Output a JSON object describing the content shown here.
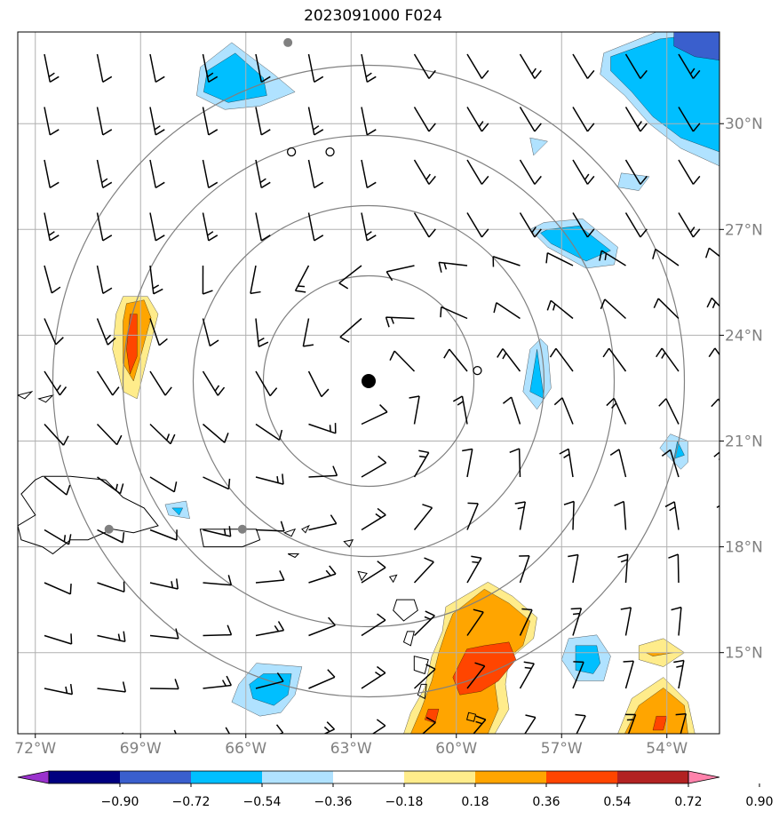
{
  "title": "2023091000 F024",
  "map": {
    "lon_range": [
      -72.5,
      -52.5
    ],
    "lat_range": [
      12.7,
      32.6
    ],
    "center": {
      "lon": -62.5,
      "lat": 22.7
    },
    "range_ring_radii_deg": [
      3,
      5,
      7,
      9
    ],
    "lon_ticks": [
      {
        "value": -72,
        "label": "72°W"
      },
      {
        "value": -69,
        "label": "69°W"
      },
      {
        "value": -66,
        "label": "66°W"
      },
      {
        "value": -63,
        "label": "63°W"
      },
      {
        "value": -60,
        "label": "60°W"
      },
      {
        "value": -57,
        "label": "57°W"
      },
      {
        "value": -54,
        "label": "54°W"
      }
    ],
    "lat_ticks": [
      {
        "value": 30,
        "label": "30°N"
      },
      {
        "value": 27,
        "label": "27°N"
      },
      {
        "value": 24,
        "label": "24°N"
      },
      {
        "value": 21,
        "label": "21°N"
      },
      {
        "value": 18,
        "label": "18°N"
      },
      {
        "value": 15,
        "label": "15°N"
      }
    ],
    "grid": true,
    "ring_markers": [
      {
        "lon": -64.8,
        "lat": 32.3
      },
      {
        "lon": -69.9,
        "lat": 18.5
      },
      {
        "lon": -66.1,
        "lat": 18.5
      }
    ]
  },
  "colorbar": {
    "tick_labels": [
      "−0.90",
      "−0.72",
      "−0.54",
      "−0.36",
      "−0.18",
      "0.18",
      "0.36",
      "0.54",
      "0.72",
      "0.90"
    ],
    "colors": [
      "#9a32cd",
      "#000080",
      "#3a5fcd",
      "#00bfff",
      "#b0e2ff",
      "#ffffff",
      "#ffec8b",
      "#ffa500",
      "#ff4500",
      "#b22222",
      "#ff82ab"
    ]
  }
}
